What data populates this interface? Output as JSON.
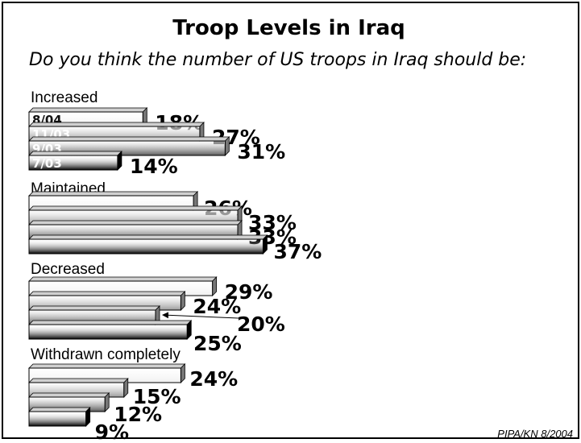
{
  "title": "Troop Levels in Iraq",
  "subtitle": "Do you think the number of US troops in Iraq should be:",
  "source": "PIPA/KN 8/2004",
  "chart_data": {
    "type": "bar",
    "orientation": "horizontal",
    "title": "Troop Levels in Iraq",
    "subtitle": "Do you think the number of US troops in Iraq should be:",
    "categories": [
      "Increased",
      "Maintained",
      "Decreased",
      "Withdrawn completely"
    ],
    "series": [
      {
        "name": "8/04",
        "values": [
          18,
          26,
          29,
          24
        ],
        "color": "#f0f0f0"
      },
      {
        "name": "11/03",
        "values": [
          27,
          33,
          24,
          15
        ],
        "color": "#9a9a9a"
      },
      {
        "name": "9/03",
        "values": [
          31,
          33,
          20,
          12
        ],
        "color": "#5a5a5a"
      },
      {
        "name": "7/03",
        "values": [
          14,
          37,
          25,
          9
        ],
        "color": "#000000"
      }
    ],
    "value_suffix": "%",
    "annotation_arrow_series": "9/03",
    "annotation_arrow_category": "Decreased",
    "xlim": [
      0,
      40
    ]
  }
}
